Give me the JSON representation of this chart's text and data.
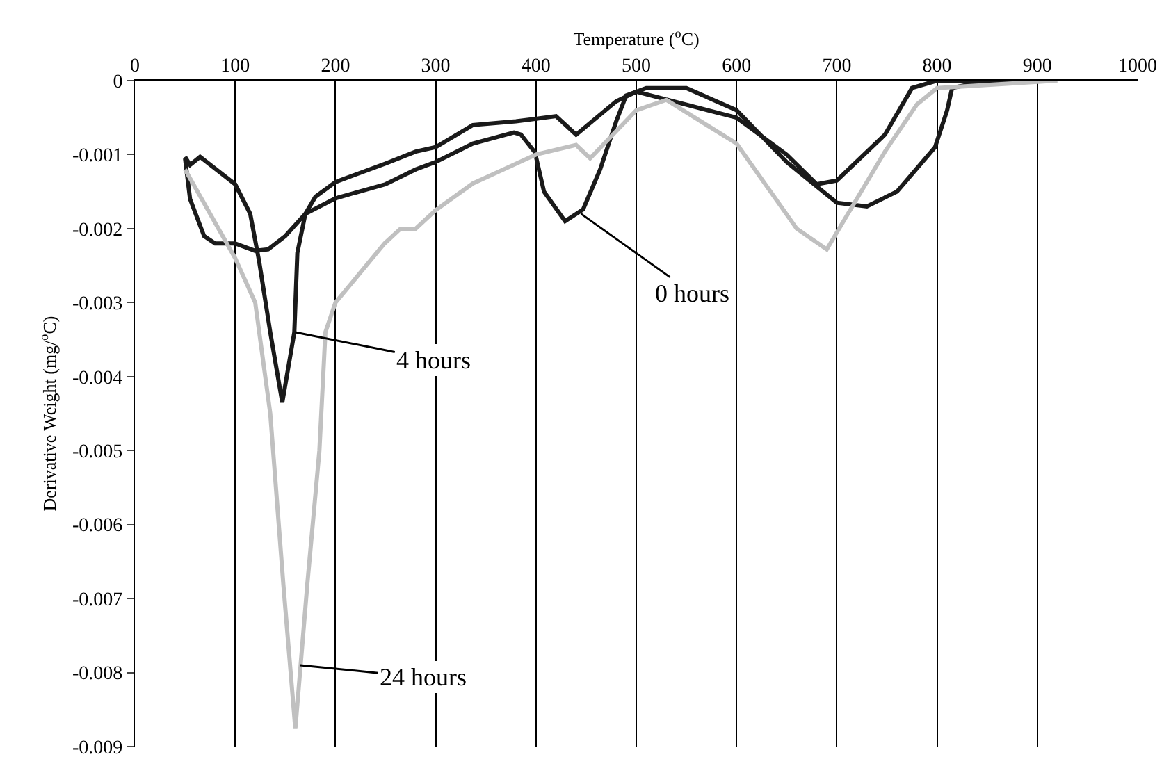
{
  "chart_data": {
    "type": "line",
    "xlabel": "Temperature ($^{o}$C)",
    "ylabel": "Derivative Weight (mg/$^{o}$C)",
    "xlim": [
      0,
      1000
    ],
    "xticks": [
      0,
      100,
      200,
      300,
      400,
      500,
      600,
      700,
      800,
      900,
      1000
    ],
    "ylim": [
      -0.009,
      0
    ],
    "yticks": [
      -0.009,
      -0.008,
      -0.007,
      -0.006,
      -0.005,
      -0.004,
      -0.003,
      -0.002,
      -0.001,
      0
    ],
    "grid": "x",
    "marker": "none",
    "line_style": "solid",
    "series": [
      {
        "color": "#1a1a1a",
        "x": [
          50,
          55,
          69,
          80,
          100,
          120,
          133,
          150,
          170,
          200,
          250,
          280,
          300,
          337,
          378,
          385,
          399,
          408,
          429,
          447,
          464,
          480,
          490,
          510,
          550,
          600,
          650,
          700,
          730,
          760,
          798,
          810,
          815,
          850,
          900
        ],
        "values": [
          -0.00105,
          -0.0016,
          -0.0021,
          -0.0022,
          -0.0022,
          -0.0023,
          -0.00228,
          -0.0021,
          -0.0018,
          -0.00159,
          -0.0014,
          -0.0012,
          -0.0011,
          -0.00085,
          -0.0007,
          -0.00073,
          -0.00097,
          -0.0015,
          -0.0019,
          -0.00174,
          -0.0012,
          -0.00055,
          -0.0002,
          -0.0001,
          -0.0001,
          -0.0004,
          -0.0011,
          -0.00165,
          -0.0017,
          -0.0015,
          -0.0009,
          -0.0004,
          -0.0001,
          0,
          0
        ]
      },
      {
        "color": "#1a1a1a",
        "x": [
          50,
          55,
          65,
          100,
          115,
          124,
          135,
          147,
          159,
          162,
          170,
          180,
          200,
          250,
          280,
          300,
          337,
          380,
          420,
          440,
          480,
          500,
          600,
          650,
          680,
          700,
          748,
          775,
          800,
          900
        ],
        "values": [
          -0.00103,
          -0.00114,
          -0.00103,
          -0.0014,
          -0.0018,
          -0.00245,
          -0.0034,
          -0.00435,
          -0.0034,
          -0.00233,
          -0.0018,
          -0.00157,
          -0.00137,
          -0.00112,
          -0.00096,
          -0.0009,
          -0.0006,
          -0.00055,
          -0.00048,
          -0.00073,
          -0.00028,
          -0.00015,
          -0.0005,
          -0.001,
          -0.0014,
          -0.00135,
          -0.00073,
          -0.0001,
          0,
          0
        ]
      },
      {
        "color": "#c0c0c0",
        "x": [
          50,
          100,
          120,
          135,
          148,
          160,
          172,
          184,
          190,
          200,
          249,
          265,
          280,
          300,
          337,
          400,
          440,
          454,
          500,
          530,
          600,
          660,
          690,
          748,
          780,
          800,
          920
        ],
        "values": [
          -0.0012,
          -0.0024,
          -0.003,
          -0.0045,
          -0.0068,
          -0.00876,
          -0.0068,
          -0.005,
          -0.0034,
          -0.003,
          -0.0022,
          -0.002,
          -0.002,
          -0.00175,
          -0.00139,
          -0.001,
          -0.00087,
          -0.00105,
          -0.0004,
          -0.00026,
          -0.00085,
          -0.002,
          -0.00228,
          -0.00096,
          -0.00032,
          -0.0001,
          0
        ]
      }
    ],
    "annotations": [
      {
        "text": "0 hours",
        "x": 445,
        "y": -0.0018
      },
      {
        "text": "4 hours",
        "x": 160,
        "y": -0.0034
      },
      {
        "text": "24 hours",
        "x": 165,
        "y": -0.0079
      }
    ]
  }
}
